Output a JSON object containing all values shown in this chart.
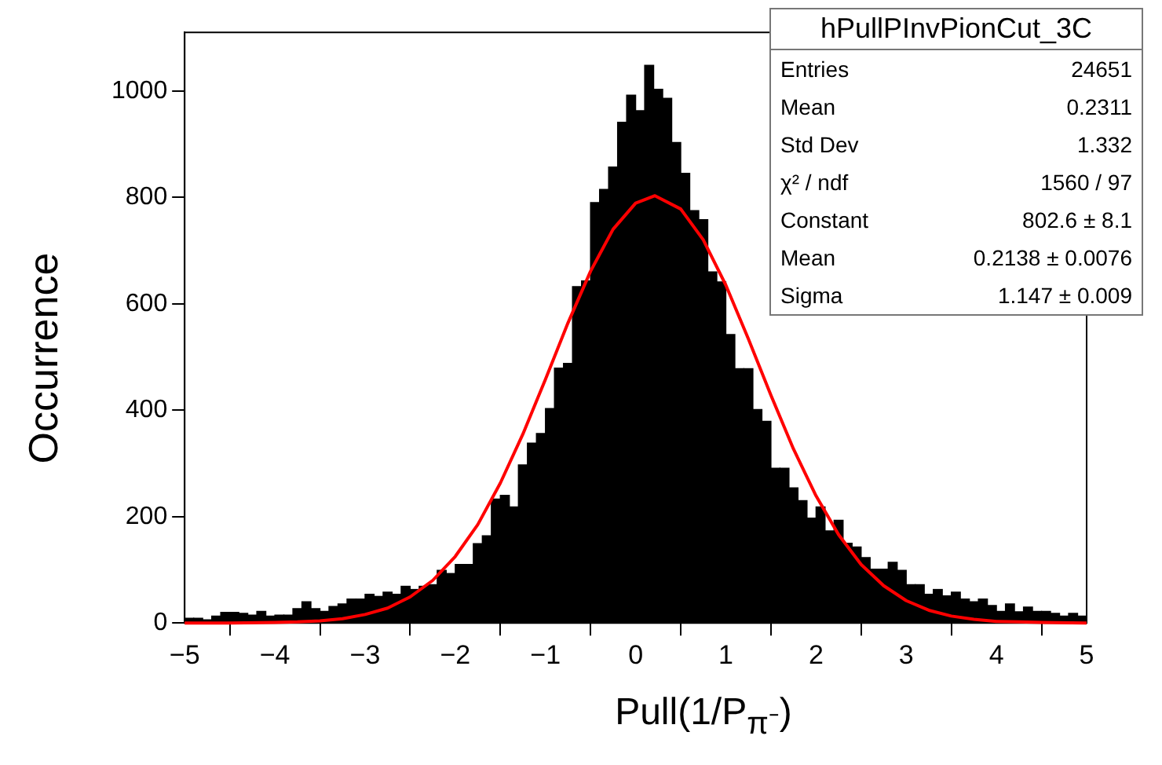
{
  "chart_data": {
    "type": "histogram",
    "xlabel": "Pull(1/P$_{π⁻}$)",
    "ylabel": "Occurrence",
    "xlim": [
      -5,
      5
    ],
    "xticks": [
      -5,
      -4,
      -3,
      -2,
      -1,
      0,
      1,
      2,
      3,
      4,
      5
    ],
    "ylim": [
      0,
      1110
    ],
    "yticks": [
      0,
      200,
      400,
      600,
      800,
      1000
    ],
    "grid": false,
    "legend": false,
    "marker": "none",
    "line_style": "solid",
    "series": [
      {
        "type": "histogram",
        "color": "#000000",
        "bins": [
          -5,
          -4.9,
          -4.8,
          -4.7,
          -4.6,
          -4.5,
          -4.4,
          -4.3,
          -4.2,
          -4.1,
          -4,
          -3.9,
          -3.8,
          -3.7,
          -3.6,
          -3.5,
          -3.4,
          -3.3,
          -3.2,
          -3.1,
          -3,
          -2.9,
          -2.8,
          -2.7,
          -2.6,
          -2.5,
          -2.4,
          -2.3,
          -2.2,
          -2.1,
          -2,
          -1.9,
          -1.8,
          -1.7,
          -1.6,
          -1.5,
          -1.4,
          -1.3,
          -1.2,
          -1.1,
          -1,
          -0.9,
          -0.8,
          -0.7,
          -0.6,
          -0.5,
          -0.4,
          -0.3,
          -0.2,
          -0.1,
          0,
          0.1,
          0.2,
          0.3,
          0.4,
          0.5,
          0.6,
          0.7,
          0.8,
          0.9,
          1,
          1.1,
          1.2,
          1.3,
          1.4,
          1.5,
          1.6,
          1.7,
          1.8,
          1.9,
          2,
          2.1,
          2.2,
          2.3,
          2.4,
          2.5,
          2.6,
          2.7,
          2.8,
          2.9,
          3,
          3.1,
          3.2,
          3.3,
          3.4,
          3.5,
          3.6,
          3.7,
          3.8,
          3.9,
          4,
          4.1,
          4.2,
          4.3,
          4.4,
          4.5,
          4.6,
          4.7,
          4.8,
          4.9,
          5
        ],
        "values": [
          9,
          9,
          6,
          13,
          20,
          20,
          18,
          15,
          22,
          13,
          15,
          15,
          27,
          40,
          27,
          22,
          31,
          36,
          45,
          45,
          54,
          50,
          58,
          54,
          69,
          63,
          69,
          72,
          99,
          93,
          110,
          110,
          149,
          164,
          233,
          240,
          218,
          297,
          338,
          356,
          403,
          479,
          488,
          632,
          643,
          790,
          815,
          857,
          941,
          992,
          963,
          1048,
          1003,
          986,
          903,
          845,
          775,
          758,
          660,
          641,
          542,
          478,
          478,
          401,
          379,
          291,
          291,
          254,
          230,
          197,
          218,
          173,
          193,
          150,
          143,
          123,
          101,
          101,
          114,
          99,
          72,
          72,
          54,
          63,
          51,
          58,
          45,
          40,
          45,
          33,
          22,
          36,
          21,
          30,
          22,
          22,
          18,
          13,
          18,
          13
        ]
      },
      {
        "type": "line",
        "color": "#ff0000",
        "x": [
          -5,
          -4.5,
          -4,
          -3.75,
          -3.5,
          -3.25,
          -3,
          -2.75,
          -2.5,
          -2.25,
          -2,
          -1.75,
          -1.5,
          -1.25,
          -1,
          -0.75,
          -0.5,
          -0.25,
          0,
          0.2138,
          0.5,
          0.75,
          1,
          1.25,
          1.5,
          1.75,
          2,
          2.25,
          2.5,
          2.75,
          3,
          3.25,
          3.5,
          3.75,
          4,
          4.25,
          4.5,
          5
        ],
        "values": [
          0,
          0,
          1,
          2,
          4,
          8,
          16,
          28,
          49,
          80,
          125,
          185,
          263,
          355,
          458,
          564,
          661,
          740,
          789,
          803,
          778,
          720,
          635,
          534,
          428,
          327,
          239,
          166,
          110,
          70,
          42,
          24,
          13,
          7,
          3,
          2,
          1,
          0
        ]
      }
    ],
    "annotations": [
      "hPullPInvPionCut_3C",
      "Entries",
      "24651",
      "Mean",
      "0.2311",
      "Std Dev",
      "1.332",
      "χ² / ndf",
      "1560 / 97",
      "Constant",
      "802.6 ± 8.1",
      "Mean",
      "0.2138 ± 0.0076",
      "Sigma",
      "1.147 ± 0.009"
    ]
  }
}
